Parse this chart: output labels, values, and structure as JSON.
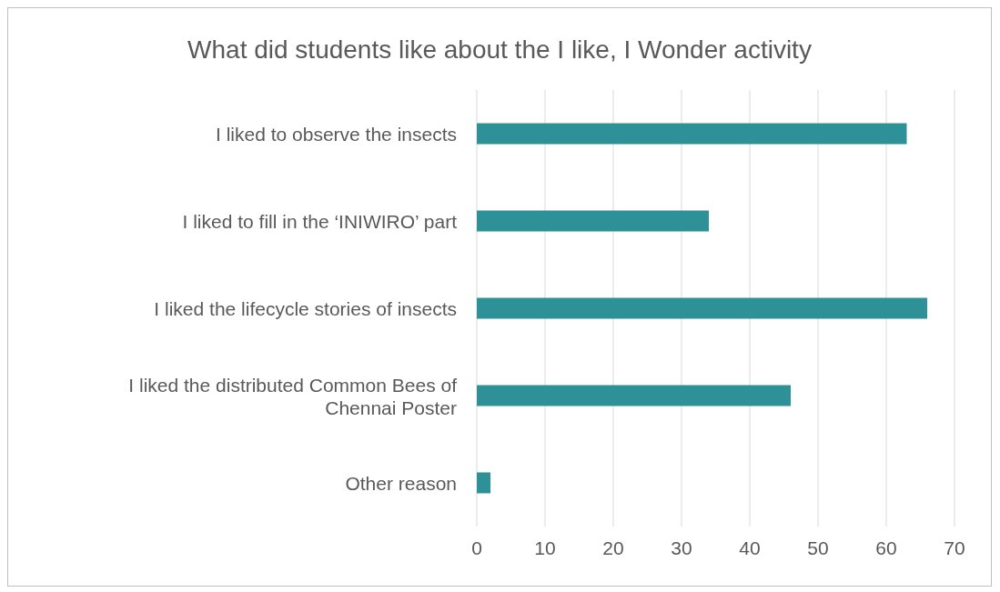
{
  "chart_data": {
    "type": "bar",
    "orientation": "horizontal",
    "title": "What did students like about the I like, I Wonder activity",
    "categories": [
      "I liked to observe the insects",
      "I liked to fill in the ‘INIWIRO’ part",
      "I liked the lifecycle stories of insects",
      "I liked the distributed Common Bees of Chennai Poster",
      "Other reason"
    ],
    "values": [
      63,
      34,
      66,
      46,
      2
    ],
    "color": "#2e9197",
    "xlim": [
      0,
      70
    ],
    "xticks": [
      0,
      10,
      20,
      30,
      40,
      50,
      60,
      70
    ],
    "grid": "x",
    "legend": false
  }
}
